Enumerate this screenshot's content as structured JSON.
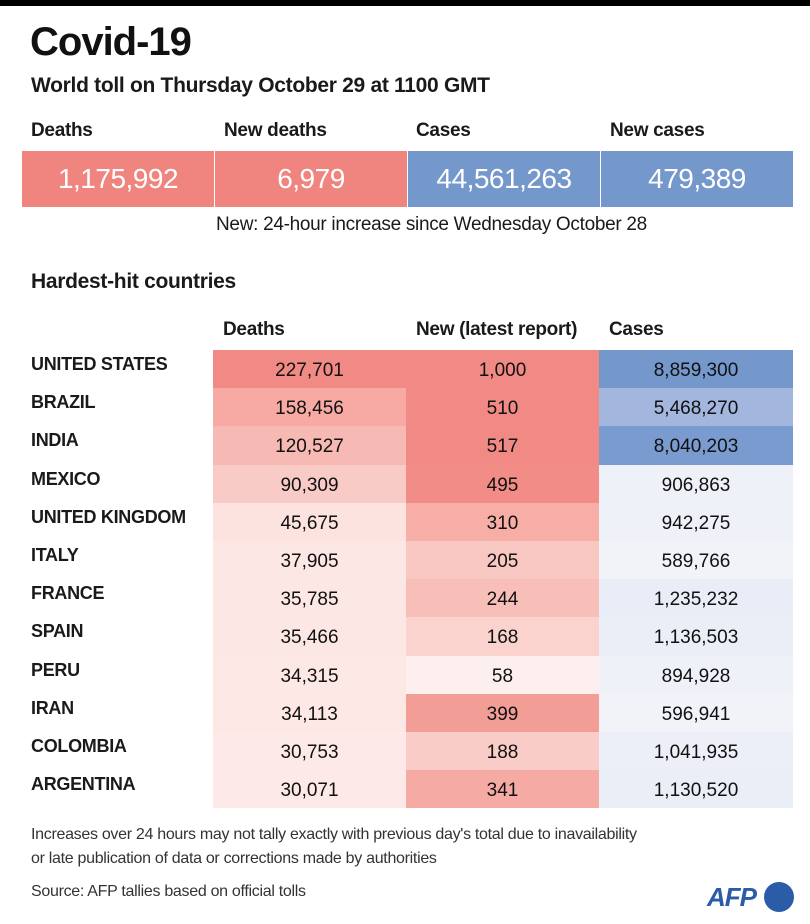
{
  "header": {
    "title": "Covid-19",
    "subtitle": "World toll on Thursday October 29 at 1100 GMT"
  },
  "kpis": [
    {
      "label": "Deaths",
      "value": "1,175,992",
      "color": "#f08580"
    },
    {
      "label": "New deaths",
      "value": "6,979",
      "color": "#f08580"
    },
    {
      "label": "Cases",
      "value": "44,561,263",
      "color": "#7497cc"
    },
    {
      "label": "New cases",
      "value": "479,389",
      "color": "#7497cc"
    }
  ],
  "kpi_note": "New: 24-hour increase since Wednesday October 28",
  "section_title": "Hardest-hit countries",
  "chart_data": {
    "type": "table",
    "title": "Hardest-hit countries",
    "columns": [
      "Deaths",
      "New (latest report)",
      "Cases"
    ],
    "rows": [
      {
        "country": "UNITED STATES",
        "deaths": "227,701",
        "new": "1,000",
        "cases": "8,859,300",
        "deaths_bg": "#f18a84",
        "new_bg": "#f18a84",
        "cases_bg": "#7497cc"
      },
      {
        "country": "BRAZIL",
        "deaths": "158,456",
        "new": "510",
        "cases": "5,468,270",
        "deaths_bg": "#f6aaa3",
        "new_bg": "#f18a84",
        "cases_bg": "#a3b6de"
      },
      {
        "country": "INDIA",
        "deaths": "120,527",
        "new": "517",
        "cases": "8,040,203",
        "deaths_bg": "#f7b9b3",
        "new_bg": "#f18a84",
        "cases_bg": "#7a9bd0"
      },
      {
        "country": "MEXICO",
        "deaths": "90,309",
        "new": "495",
        "cases": "906,863",
        "deaths_bg": "#f9cbc6",
        "new_bg": "#f28c86",
        "cases_bg": "#eef1f8"
      },
      {
        "country": "UNITED KINGDOM",
        "deaths": "45,675",
        "new": "310",
        "cases": "942,275",
        "deaths_bg": "#fce3e0",
        "new_bg": "#f6aea7",
        "cases_bg": "#eef1f8"
      },
      {
        "country": "ITALY",
        "deaths": "37,905",
        "new": "205",
        "cases": "589,766",
        "deaths_bg": "#fde7e5",
        "new_bg": "#f9c7c1",
        "cases_bg": "#f1f3f9"
      },
      {
        "country": "FRANCE",
        "deaths": "35,785",
        "new": "244",
        "cases": "1,235,232",
        "deaths_bg": "#fde7e5",
        "new_bg": "#f8bfb9",
        "cases_bg": "#e9edf7"
      },
      {
        "country": "SPAIN",
        "deaths": "35,466",
        "new": "168",
        "cases": "1,136,503",
        "deaths_bg": "#fde7e5",
        "new_bg": "#fad3ce",
        "cases_bg": "#eaeef7"
      },
      {
        "country": "PERU",
        "deaths": "34,315",
        "new": "58",
        "cases": "894,928",
        "deaths_bg": "#fde8e6",
        "new_bg": "#fdefed",
        "cases_bg": "#eef1f8"
      },
      {
        "country": "IRAN",
        "deaths": "34,113",
        "new": "399",
        "cases": "596,941",
        "deaths_bg": "#fde8e6",
        "new_bg": "#f39d97",
        "cases_bg": "#f1f3f9"
      },
      {
        "country": "COLOMBIA",
        "deaths": "30,753",
        "new": "188",
        "cases": "1,041,935",
        "deaths_bg": "#fde9e7",
        "new_bg": "#f9ccc7",
        "cases_bg": "#eceff8"
      },
      {
        "country": "ARGENTINA",
        "deaths": "30,071",
        "new": "341",
        "cases": "1,130,520",
        "deaths_bg": "#fde9e7",
        "new_bg": "#f5aaa3",
        "cases_bg": "#eaeef7"
      }
    ]
  },
  "footer": {
    "note_line1": "Increases over 24 hours may not tally exactly with previous day's total due to inavailability",
    "note_line2": "or late publication of data or corrections made by authorities",
    "source": "Source: AFP tallies based on official tolls",
    "logo": "AFP"
  }
}
